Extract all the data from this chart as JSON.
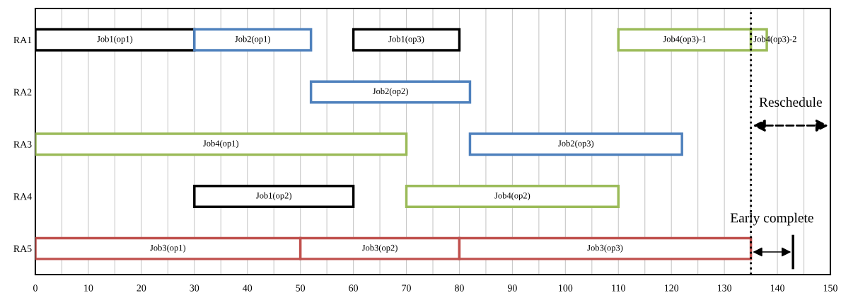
{
  "chart_data": {
    "type": "bar",
    "orientation": "horizontal",
    "categories": [
      "RA1",
      "RA2",
      "RA3",
      "RA4",
      "RA5"
    ],
    "series": [
      {
        "color": "#000000",
        "base": [
          0,
          null,
          null,
          30,
          null
        ],
        "values": [
          30,
          null,
          null,
          30,
          null
        ],
        "value_labels": [
          "Job1(op1)",
          null,
          null,
          "Job1(op2)",
          null
        ]
      },
      {
        "color": "#000000",
        "base": [
          60,
          null,
          null,
          null,
          null
        ],
        "values": [
          20,
          null,
          null,
          null,
          null
        ],
        "value_labels": [
          "Job1(op3)",
          null,
          null,
          null,
          null
        ]
      },
      {
        "color": "#4f81bd",
        "base": [
          30,
          52,
          82,
          null,
          null
        ],
        "values": [
          22,
          30,
          40,
          null,
          null
        ],
        "value_labels": [
          "Job2(op1)",
          "Job2(op2)",
          "Job2(op3)",
          null,
          null
        ]
      },
      {
        "color": "#9bbb59",
        "base": [
          110,
          null,
          0,
          70,
          null
        ],
        "values": [
          25,
          null,
          70,
          40,
          null
        ],
        "value_labels": [
          "Job4(op3)-1",
          null,
          "Job4(op1)",
          "Job4(op2)",
          null
        ]
      },
      {
        "color": "#9bbb59",
        "base": [
          135,
          null,
          null,
          null,
          null
        ],
        "values": [
          3,
          null,
          null,
          null,
          null
        ],
        "value_labels": [
          "Job4(op3)-2",
          null,
          null,
          null,
          null
        ]
      },
      {
        "color": "#c0504d",
        "base": [
          null,
          null,
          null,
          null,
          0
        ],
        "values": [
          null,
          null,
          null,
          null,
          50
        ],
        "value_labels": [
          null,
          null,
          null,
          null,
          "Job3(op1)"
        ]
      },
      {
        "color": "#c0504d",
        "base": [
          null,
          null,
          null,
          null,
          50
        ],
        "values": [
          null,
          null,
          null,
          null,
          30
        ],
        "value_labels": [
          null,
          null,
          null,
          null,
          "Job3(op2)"
        ]
      },
      {
        "color": "#c0504d",
        "base": [
          null,
          null,
          null,
          null,
          80
        ],
        "values": [
          null,
          null,
          null,
          null,
          55
        ],
        "value_labels": [
          null,
          null,
          null,
          null,
          "Job3(op3)"
        ]
      }
    ],
    "xlim": [
      0,
      150
    ],
    "xticks": [
      0,
      {
        "value": 5,
        "label": null
      },
      10,
      {
        "value": 15,
        "label": null
      },
      20,
      {
        "value": 25,
        "label": null
      },
      30,
      {
        "value": 35,
        "label": null
      },
      40,
      {
        "value": 45,
        "label": null
      },
      50,
      {
        "value": 55,
        "label": null
      },
      60,
      {
        "value": 65,
        "label": null
      },
      70,
      {
        "value": 75,
        "label": null
      },
      80,
      {
        "value": 85,
        "label": null
      },
      90,
      {
        "value": 95,
        "label": null
      },
      100,
      {
        "value": 105,
        "label": null
      },
      110,
      {
        "value": 115,
        "label": null
      },
      120,
      {
        "value": 125,
        "label": null
      },
      130,
      {
        "value": 135,
        "label": null
      },
      140,
      {
        "value": 145,
        "label": null
      },
      150
    ],
    "grid": "x",
    "ref_lines": [
      {
        "axis": "x",
        "value": 135,
        "color": "#000000",
        "line_style": "dotted"
      }
    ],
    "annotations": [
      "Reschedule",
      "Early complete"
    ]
  }
}
